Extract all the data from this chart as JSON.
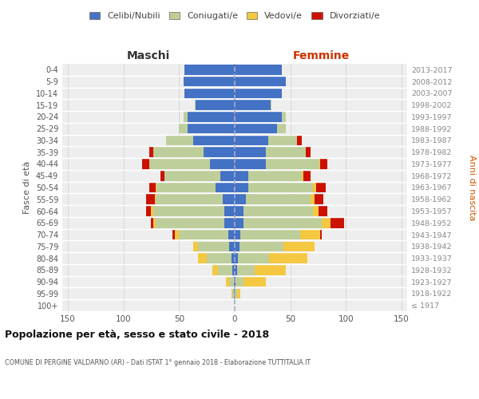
{
  "age_groups": [
    "100+",
    "95-99",
    "90-94",
    "85-89",
    "80-84",
    "75-79",
    "70-74",
    "65-69",
    "60-64",
    "55-59",
    "50-54",
    "45-49",
    "40-44",
    "35-39",
    "30-34",
    "25-29",
    "20-24",
    "15-19",
    "10-14",
    "5-9",
    "0-4"
  ],
  "birth_years": [
    "≤ 1917",
    "1918-1922",
    "1923-1927",
    "1928-1932",
    "1933-1937",
    "1938-1942",
    "1943-1947",
    "1948-1952",
    "1953-1957",
    "1958-1962",
    "1963-1967",
    "1968-1972",
    "1973-1977",
    "1978-1982",
    "1983-1987",
    "1988-1992",
    "1993-1997",
    "1998-2002",
    "2003-2007",
    "2008-2012",
    "2013-2017"
  ],
  "colors": {
    "celibi": "#4472C4",
    "coniugati": "#BECE9A",
    "vedovi": "#F5C842",
    "divorziati": "#CC1100"
  },
  "maschi": {
    "celibi": [
      0,
      1,
      1,
      2,
      3,
      5,
      6,
      9,
      9,
      11,
      17,
      13,
      22,
      28,
      37,
      42,
      42,
      35,
      45,
      46,
      45
    ],
    "coniugati": [
      0,
      1,
      4,
      13,
      22,
      28,
      44,
      62,
      64,
      60,
      53,
      50,
      55,
      45,
      25,
      8,
      4,
      1,
      0,
      0,
      0
    ],
    "vedovi": [
      0,
      1,
      3,
      5,
      8,
      4,
      4,
      2,
      2,
      1,
      1,
      0,
      0,
      0,
      0,
      0,
      0,
      0,
      0,
      0,
      0
    ],
    "divorziati": [
      0,
      0,
      0,
      0,
      0,
      0,
      2,
      2,
      5,
      8,
      6,
      4,
      6,
      4,
      0,
      0,
      0,
      0,
      0,
      0,
      0
    ]
  },
  "femmine": {
    "celibi": [
      0,
      0,
      1,
      2,
      3,
      4,
      5,
      8,
      8,
      10,
      12,
      12,
      28,
      28,
      30,
      38,
      42,
      32,
      42,
      46,
      42
    ],
    "coniugati": [
      0,
      2,
      7,
      16,
      28,
      40,
      54,
      70,
      62,
      58,
      58,
      48,
      48,
      36,
      26,
      8,
      4,
      1,
      0,
      0,
      0
    ],
    "vedovi": [
      0,
      3,
      20,
      28,
      34,
      28,
      18,
      8,
      5,
      4,
      3,
      2,
      1,
      0,
      0,
      0,
      0,
      0,
      0,
      0,
      0
    ],
    "divorziati": [
      0,
      0,
      0,
      0,
      0,
      0,
      1,
      12,
      8,
      8,
      9,
      6,
      6,
      4,
      4,
      0,
      0,
      0,
      0,
      0,
      0
    ]
  },
  "xlim": 155,
  "xtick_vals": [
    -150,
    -100,
    -50,
    0,
    50,
    100,
    150
  ],
  "title": "Popolazione per età, sesso e stato civile - 2018",
  "subtitle": "COMUNE DI PERGINE VALDARNO (AR) - Dati ISTAT 1° gennaio 2018 - Elaborazione TUTTITALIA.IT",
  "xlabel_left": "Maschi",
  "xlabel_right": "Femmine",
  "ylabel_left": "Fasce di età",
  "ylabel_right": "Anni di nascita",
  "legend_labels": [
    "Celibi/Nubili",
    "Coniugati/e",
    "Vedovi/e",
    "Divorziati/e"
  ],
  "bg_color": "#eeeeee",
  "bar_height": 0.85
}
